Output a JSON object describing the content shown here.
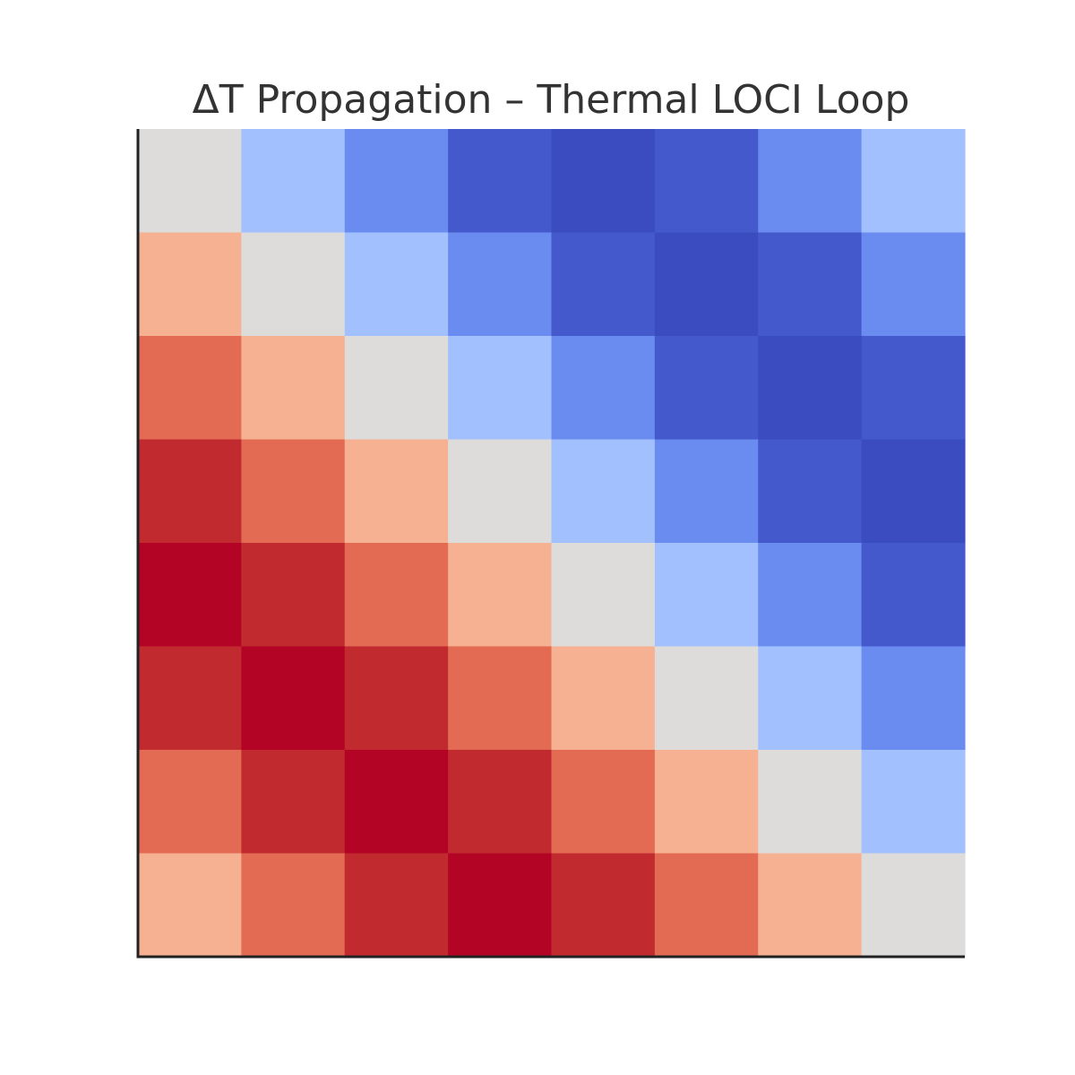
{
  "chart_data": {
    "type": "heatmap",
    "title": "ΔT Propagation – Thermal LOCI Loop",
    "xlabel": "",
    "ylabel": "",
    "rows": 8,
    "cols": 8,
    "grid": false,
    "colormap": "coolwarm",
    "vmin": -4,
    "vmax": 4,
    "values": [
      [
        0,
        -1,
        -2,
        -3,
        -4,
        -3,
        -2,
        -1
      ],
      [
        1,
        0,
        -1,
        -2,
        -3,
        -4,
        -3,
        -2
      ],
      [
        2,
        1,
        0,
        -1,
        -2,
        -3,
        -4,
        -3
      ],
      [
        3,
        2,
        1,
        0,
        -1,
        -2,
        -3,
        -4
      ],
      [
        4,
        3,
        2,
        1,
        0,
        -1,
        -2,
        -3
      ],
      [
        3,
        4,
        3,
        2,
        1,
        0,
        -1,
        -2
      ],
      [
        2,
        3,
        4,
        3,
        2,
        1,
        0,
        -1
      ],
      [
        1,
        2,
        3,
        4,
        3,
        2,
        1,
        0
      ]
    ],
    "color_levels": {
      "-4": "#3b4cc0",
      "-3": "#445acc",
      "-2": "#6a8bef",
      "-1": "#a3c0fe",
      "0": "#dddcdb",
      "1": "#f6b092",
      "2": "#e36a53",
      "3": "#c12b30",
      "4": "#b40426"
    },
    "axis_color": "#222222"
  }
}
